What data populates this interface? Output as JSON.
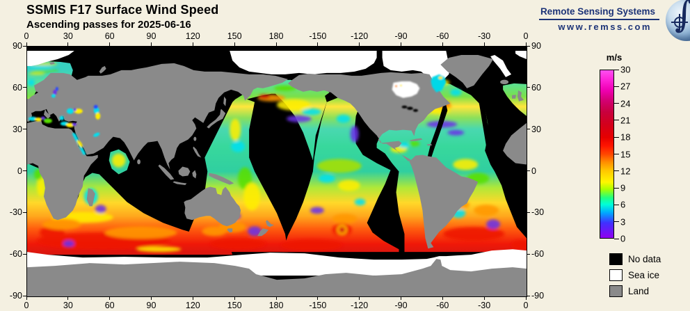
{
  "header": {
    "title": "SSMIS F17 Surface Wind Speed",
    "subtitle": "Ascending passes for 2025-06-16"
  },
  "logo": {
    "name": "Remote Sensing Systems",
    "url": "www.remss.com",
    "icon": "earth-globe-with-integral-symbol",
    "color": "#1c3377"
  },
  "axes": {
    "lon_labels": [
      "0",
      "30",
      "60",
      "90",
      "120",
      "150",
      "180",
      "-150",
      "-120",
      "-90",
      "-60",
      "-30",
      "0"
    ],
    "lat_labels": [
      "90",
      "60",
      "30",
      "0",
      "-30",
      "-60",
      "-90"
    ]
  },
  "colorbar": {
    "unit": "m/s",
    "min": 0,
    "max": 30,
    "tick_labels_top_to_bottom": [
      "30",
      "27",
      "24",
      "21",
      "18",
      "15",
      "12",
      "9",
      "6",
      "3",
      "0"
    ],
    "stops": [
      {
        "value": 0,
        "color": "#9000f0"
      },
      {
        "value": 2.7,
        "color": "#4030ff"
      },
      {
        "value": 4.5,
        "color": "#00a8ff"
      },
      {
        "value": 6,
        "color": "#00ffd8"
      },
      {
        "value": 7.2,
        "color": "#20ff80"
      },
      {
        "value": 8.7,
        "color": "#a8ff00"
      },
      {
        "value": 10,
        "color": "#fff600"
      },
      {
        "value": 12,
        "color": "#ffc800"
      },
      {
        "value": 13.5,
        "color": "#ff9000"
      },
      {
        "value": 15,
        "color": "#ff4600"
      },
      {
        "value": 16.5,
        "color": "#ff1400"
      },
      {
        "value": 18,
        "color": "#e60000"
      },
      {
        "value": 20.5,
        "color": "#d2001e"
      },
      {
        "value": 22.5,
        "color": "#c8003c"
      },
      {
        "value": 24.5,
        "color": "#d20070"
      },
      {
        "value": 26.5,
        "color": "#f000b4"
      },
      {
        "value": 28.5,
        "color": "#ff28dc"
      },
      {
        "value": 30,
        "color": "#ff50f0"
      }
    ]
  },
  "legend": {
    "items": [
      {
        "label": "No data",
        "color": "#000000"
      },
      {
        "label": "Sea ice",
        "color": "#ffffff"
      },
      {
        "label": "Land",
        "color": "#8a8a8a"
      }
    ]
  },
  "chart_data": {
    "type": "heatmap",
    "title": "SSMIS F17 Surface Wind Speed",
    "subtitle": "Ascending passes for 2025-06-16",
    "projection": "equirectangular world map",
    "x_axis": {
      "label_ticks": [
        "0",
        "30",
        "60",
        "90",
        "120",
        "150",
        "180",
        "-150",
        "-120",
        "-90",
        "-60",
        "-30",
        "0"
      ],
      "units": "degrees longitude, 0→360 east"
    },
    "y_axis": {
      "label_ticks": [
        "90",
        "60",
        "30",
        "0",
        "-30",
        "-60",
        "-90"
      ],
      "units": "degrees latitude"
    },
    "value_unit": "m/s",
    "value_range": [
      0,
      30
    ],
    "colorbar_tick_step": 3,
    "mask_categories": [
      {
        "label": "No data",
        "color": "#000000"
      },
      {
        "label": "Sea ice",
        "color": "#ffffff"
      },
      {
        "label": "Land",
        "color": "#8a8a8a"
      }
    ],
    "coverage_description": "Roughly six diagonal ascending orbit swaths of ocean wind data separated by black no-data gaps: NE Atlantic/Norwegian Sea near 0-30E; west Pacific near 130-185E; central/NE Pacific near 180-260E with a red cyclone swirl near 190W,-42S; SE Pacific/Atlantic near 260-355E; south Indian Ocean band 0-145E. Winds 15-25 m/s (red) along the Southern Ocean storm track (-35S to -60S), 3-12 m/s (cyan/green/yellow) in tropics and northern oceans with purple 1-4 m/s patches. White sea ice fringes the Arctic and Antarctic; land is gray; unsampled ocean is black."
  }
}
